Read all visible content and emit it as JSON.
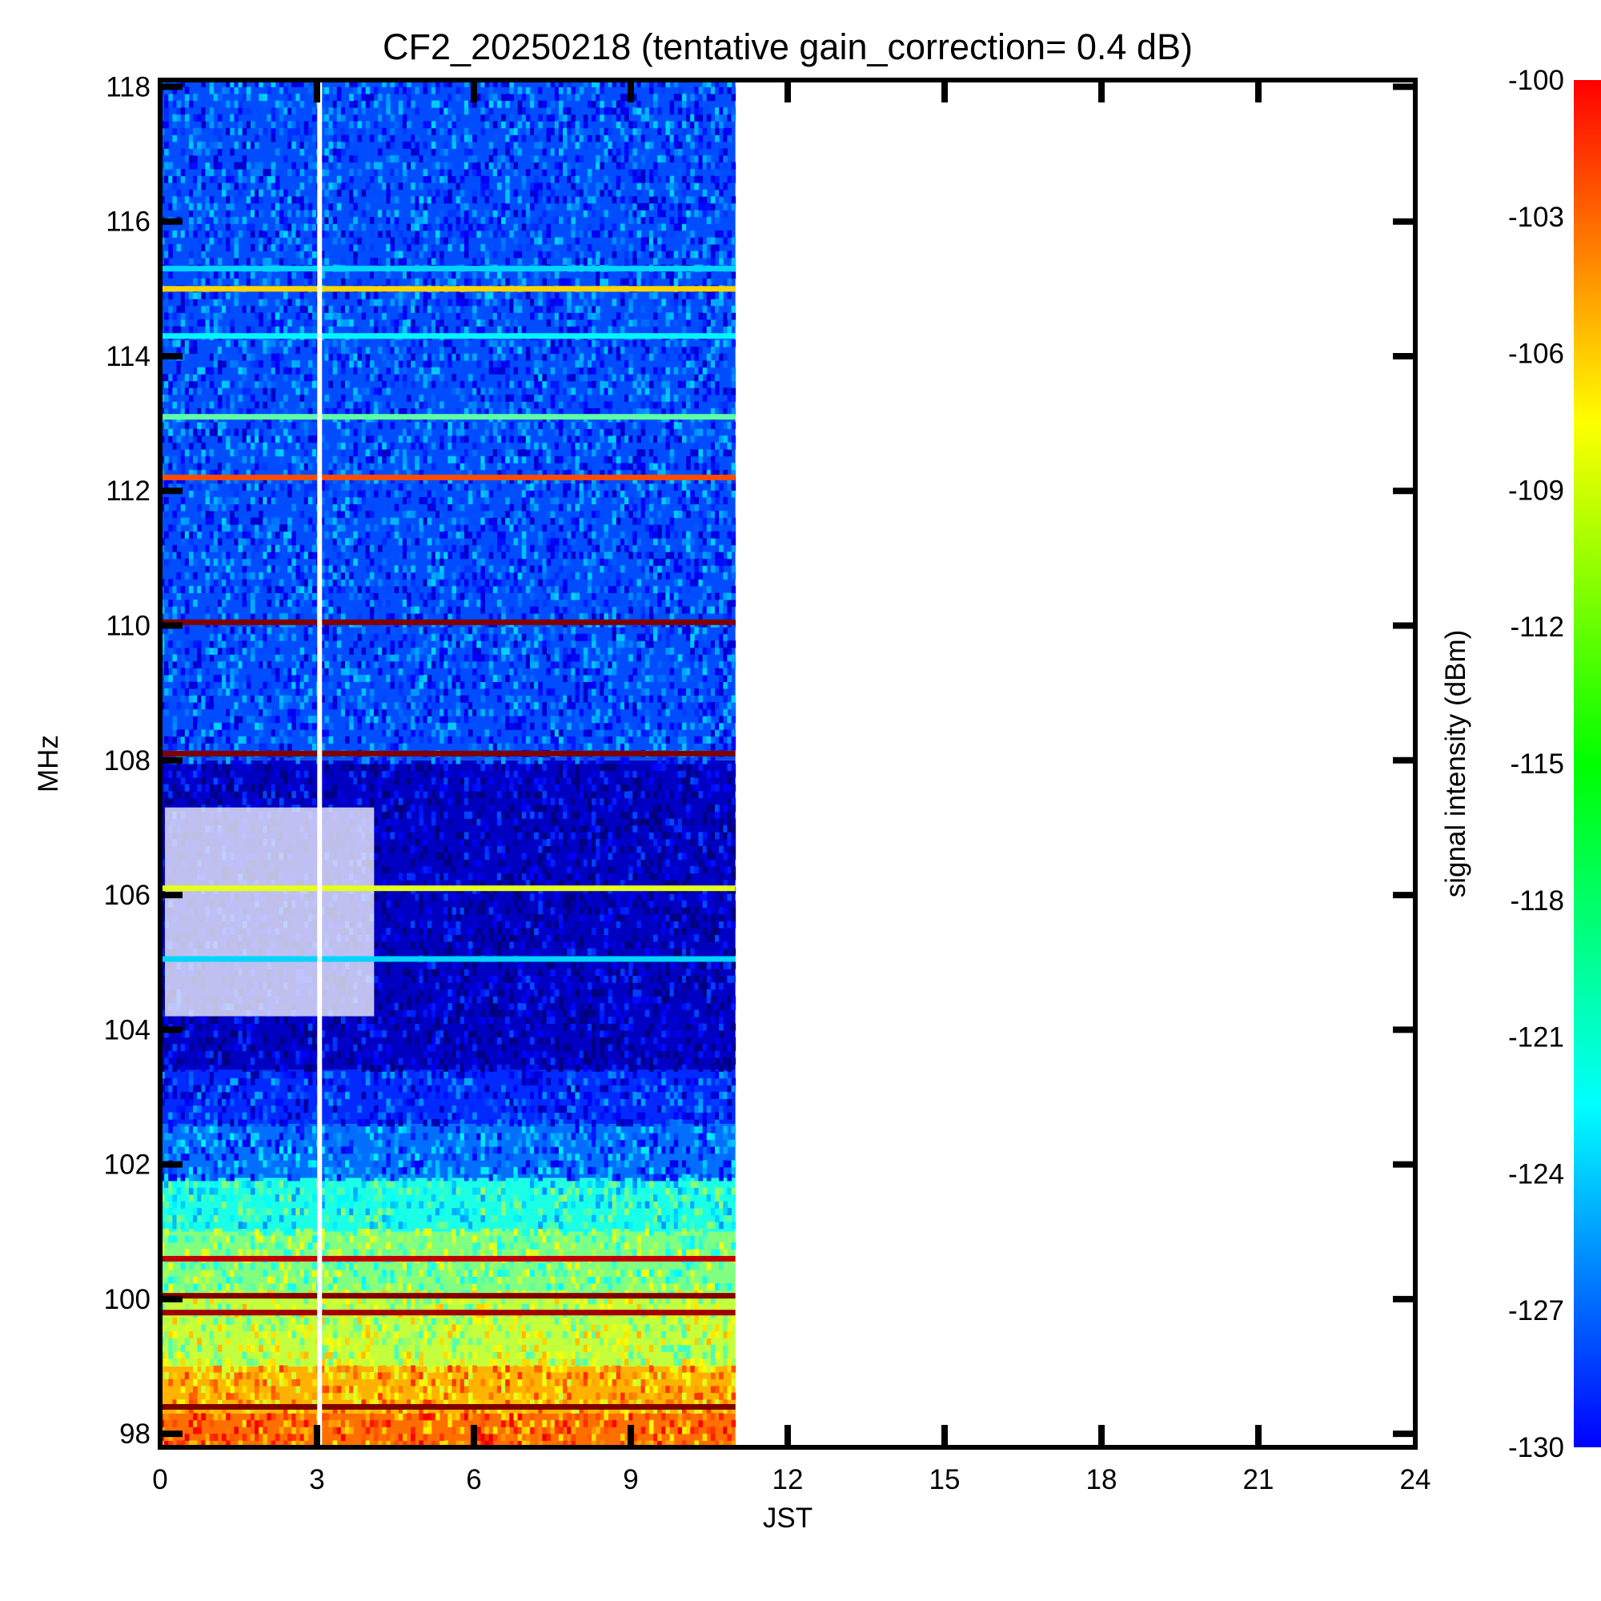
{
  "chart_data": {
    "type": "heatmap",
    "title": "CF2_20250218 (tentative gain_correction=  0.4 dB)",
    "xlabel": "JST",
    "ylabel": "MHz",
    "colorbar_label": "signal intensity (dBm)",
    "xlim": [
      0,
      24
    ],
    "ylim": [
      97.8,
      118.1
    ],
    "x_ticks": [
      0,
      3,
      6,
      9,
      12,
      15,
      18,
      21,
      24
    ],
    "y_ticks": [
      98,
      100,
      102,
      104,
      106,
      108,
      110,
      112,
      114,
      116,
      118
    ],
    "colorbar_range": [
      -130,
      -100
    ],
    "colorbar_ticks": [
      -100,
      -103,
      -106,
      -109,
      -112,
      -115,
      -118,
      -121,
      -124,
      -127,
      -130
    ],
    "colormap": "jet",
    "data_time_range": [
      0,
      11
    ],
    "gap_time": 3.05,
    "grid": false,
    "background_bands": [
      {
        "freq": [
          97.8,
          98.3
        ],
        "dbm": -107
      },
      {
        "freq": [
          98.3,
          99.0
        ],
        "dbm": -109
      },
      {
        "freq": [
          99.0,
          100.1
        ],
        "dbm": -113
      },
      {
        "freq": [
          100.1,
          101.0
        ],
        "dbm": -115
      },
      {
        "freq": [
          101.0,
          101.8
        ],
        "dbm": -118
      },
      {
        "freq": [
          101.8,
          102.6
        ],
        "dbm": -123
      },
      {
        "freq": [
          102.6,
          103.4
        ],
        "dbm": -125
      },
      {
        "freq": [
          103.4,
          108.0
        ],
        "dbm": -128
      },
      {
        "freq": [
          108.0,
          118.1
        ],
        "dbm": -124
      }
    ],
    "lines": [
      {
        "freq": 98.4,
        "dbm": -100
      },
      {
        "freq": 99.8,
        "dbm": -101
      },
      {
        "freq": 100.05,
        "dbm": -100
      },
      {
        "freq": 100.6,
        "dbm": -102
      },
      {
        "freq": 105.05,
        "dbm": -120
      },
      {
        "freq": 106.1,
        "dbm": -112
      },
      {
        "freq": 108.1,
        "dbm": -100
      },
      {
        "freq": 110.05,
        "dbm": -100
      },
      {
        "freq": 112.2,
        "dbm": -106
      },
      {
        "freq": 113.1,
        "dbm": -116
      },
      {
        "freq": 114.3,
        "dbm": -119
      },
      {
        "freq": 115.0,
        "dbm": -110
      },
      {
        "freq": 115.3,
        "dbm": -120
      }
    ],
    "data_gaps": [
      {
        "freq": [
          104.2,
          107.3
        ],
        "time": [
          0,
          4.0
        ]
      }
    ],
    "colors": {
      "axis": "#000000",
      "background": "#ffffff"
    }
  }
}
